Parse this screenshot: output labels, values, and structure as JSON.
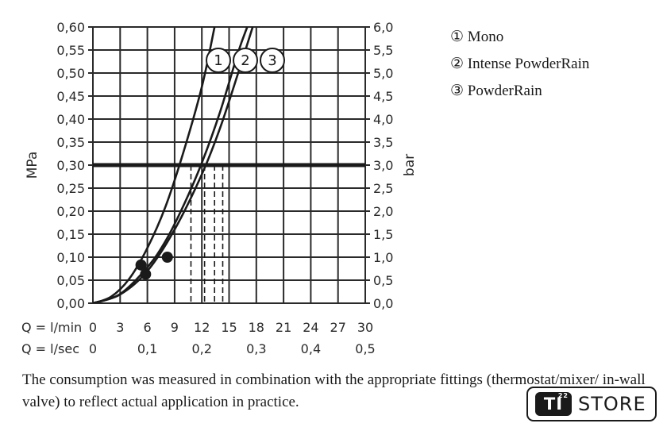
{
  "chart_data": {
    "type": "line",
    "ylabel_left": "MPa",
    "ylabel_right": "bar",
    "yticks_left": [
      "0,00",
      "0,05",
      "0,10",
      "0,15",
      "0,20",
      "0,25",
      "0,30",
      "0,35",
      "0,40",
      "0,45",
      "0,50",
      "0,55",
      "0,60"
    ],
    "yticks_right": [
      "0,0",
      "0,5",
      "1,0",
      "1,5",
      "2,0",
      "2,5",
      "3,0",
      "3,5",
      "4,0",
      "4,5",
      "5,0",
      "5,5",
      "6,0"
    ],
    "xaxis_primary": {
      "label": "Q = l/min",
      "ticks": [
        "0",
        "3",
        "6",
        "9",
        "12",
        "15",
        "18",
        "21",
        "24",
        "27",
        "30"
      ]
    },
    "xaxis_secondary": {
      "label": "Q = l/sec",
      "ticks": [
        "0",
        "0,1",
        "0,2",
        "0,3",
        "0,4",
        "0,5"
      ]
    },
    "ylim": [
      0,
      0.6
    ],
    "xlim": [
      0,
      30
    ],
    "grid": true,
    "reference_line": {
      "y": 0.3
    },
    "series": [
      {
        "name": "1",
        "points": [
          [
            0,
            0
          ],
          [
            2,
            0.014
          ],
          [
            4,
            0.053
          ],
          [
            6,
            0.12
          ],
          [
            8,
            0.21
          ],
          [
            10,
            0.33
          ],
          [
            12,
            0.47
          ],
          [
            13.4,
            0.6
          ]
        ],
        "marker": [
          5.3,
          0.083
        ]
      },
      {
        "name": "2",
        "points": [
          [
            0,
            0
          ],
          [
            3,
            0.02
          ],
          [
            6,
            0.078
          ],
          [
            8,
            0.135
          ],
          [
            10,
            0.213
          ],
          [
            12,
            0.305
          ],
          [
            14,
            0.415
          ],
          [
            16,
            0.545
          ],
          [
            17,
            0.6
          ]
        ],
        "marker": [
          8.2,
          0.1
        ]
      },
      {
        "name": "3",
        "points": [
          [
            0,
            0
          ],
          [
            3,
            0.019
          ],
          [
            6,
            0.07
          ],
          [
            9,
            0.16
          ],
          [
            12,
            0.28
          ],
          [
            14,
            0.38
          ],
          [
            16,
            0.5
          ],
          [
            17.6,
            0.6
          ]
        ],
        "marker": [
          5.8,
          0.063
        ]
      }
    ],
    "guide_lines_x": [
      10.8,
      12.3,
      13.4,
      14.3
    ]
  },
  "legend": [
    {
      "symbol": "①",
      "label": "Mono"
    },
    {
      "symbol": "②",
      "label": "Intense PowderRain"
    },
    {
      "symbol": "③",
      "label": "PowderRain"
    }
  ],
  "note": "The consumption was measured in combination with the appropriate fittings (thermostat/mixer/ in-wall valve) to reflect actual application in practice.",
  "logo": {
    "mark": "TI",
    "superscript": "22",
    "word": "STORE"
  },
  "colors": {
    "ink": "#1a1a1a",
    "grid": "#2a2a2a"
  }
}
